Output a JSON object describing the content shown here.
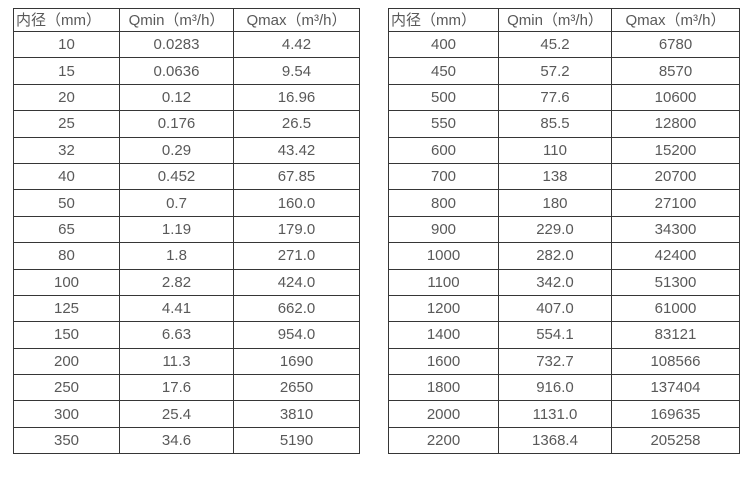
{
  "colors": {
    "background": "#ffffff",
    "border": "#363636",
    "text": "#595959"
  },
  "tables": [
    {
      "name": "flow-rate-table-small-diameters",
      "columns": [
        "内径（mm）",
        "Qmin（m³/h）",
        "Qmax（m³/h）"
      ],
      "rows": [
        [
          "10",
          "0.0283",
          "4.42"
        ],
        [
          "15",
          "0.0636",
          "9.54"
        ],
        [
          "20",
          "0.12",
          "16.96"
        ],
        [
          "25",
          "0.176",
          "26.5"
        ],
        [
          "32",
          "0.29",
          "43.42"
        ],
        [
          "40",
          "0.452",
          "67.85"
        ],
        [
          "50",
          "0.7",
          "160.0"
        ],
        [
          "65",
          "1.19",
          "179.0"
        ],
        [
          "80",
          "1.8",
          "271.0"
        ],
        [
          "100",
          "2.82",
          "424.0"
        ],
        [
          "125",
          "4.41",
          "662.0"
        ],
        [
          "150",
          "6.63",
          "954.0"
        ],
        [
          "200",
          "11.3",
          "1690"
        ],
        [
          "250",
          "17.6",
          "2650"
        ],
        [
          "300",
          "25.4",
          "3810"
        ],
        [
          "350",
          "34.6",
          "5190"
        ]
      ]
    },
    {
      "name": "flow-rate-table-large-diameters",
      "columns": [
        "内径（mm）",
        "Qmin（m³/h）",
        "Qmax（m³/h）"
      ],
      "rows": [
        [
          "400",
          "45.2",
          "6780"
        ],
        [
          "450",
          "57.2",
          "8570"
        ],
        [
          "500",
          "77.6",
          "10600"
        ],
        [
          "550",
          "85.5",
          "12800"
        ],
        [
          "600",
          "110",
          "15200"
        ],
        [
          "700",
          "138",
          "20700"
        ],
        [
          "800",
          "180",
          "27100"
        ],
        [
          "900",
          "229.0",
          "34300"
        ],
        [
          "1000",
          "282.0",
          "42400"
        ],
        [
          "1100",
          "342.0",
          "51300"
        ],
        [
          "1200",
          "407.0",
          "61000"
        ],
        [
          "1400",
          "554.1",
          "83121"
        ],
        [
          "1600",
          "732.7",
          "108566"
        ],
        [
          "1800",
          "916.0",
          "137404"
        ],
        [
          "2000",
          "1131.0",
          "169635"
        ],
        [
          "2200",
          "1368.4",
          "205258"
        ]
      ]
    }
  ]
}
